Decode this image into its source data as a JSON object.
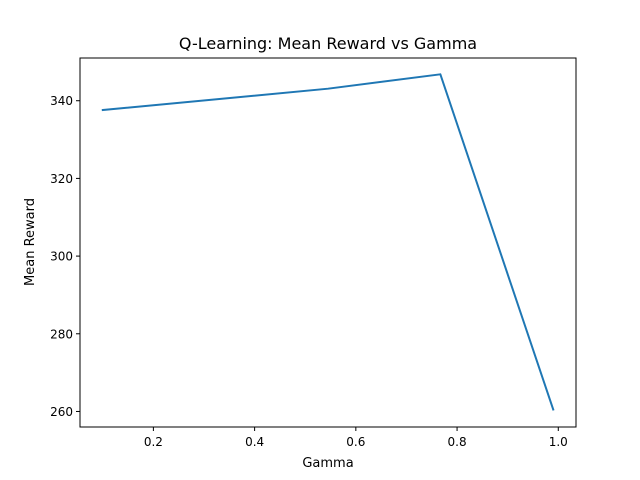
{
  "chart_data": {
    "type": "line",
    "title": "Q-Learning: Mean Reward vs Gamma",
    "xlabel": "Gamma",
    "ylabel": "Mean Reward",
    "xlim": [
      0.055,
      1.035
    ],
    "ylim": [
      256.0,
      351.0
    ],
    "xticks": [
      0.2,
      0.4,
      0.6,
      0.8,
      1.0
    ],
    "xtick_labels": [
      "0.2",
      "0.4",
      "0.6",
      "0.8",
      "1.0"
    ],
    "yticks": [
      260,
      280,
      300,
      320,
      340
    ],
    "ytick_labels": [
      "260",
      "280",
      "300",
      "320",
      "340"
    ],
    "grid": false,
    "series": [
      {
        "color": "#1f77b4",
        "x": [
          0.1,
          0.545,
          0.767,
          0.99
        ],
        "y": [
          337.6,
          343.1,
          346.8,
          260.5
        ]
      }
    ]
  }
}
